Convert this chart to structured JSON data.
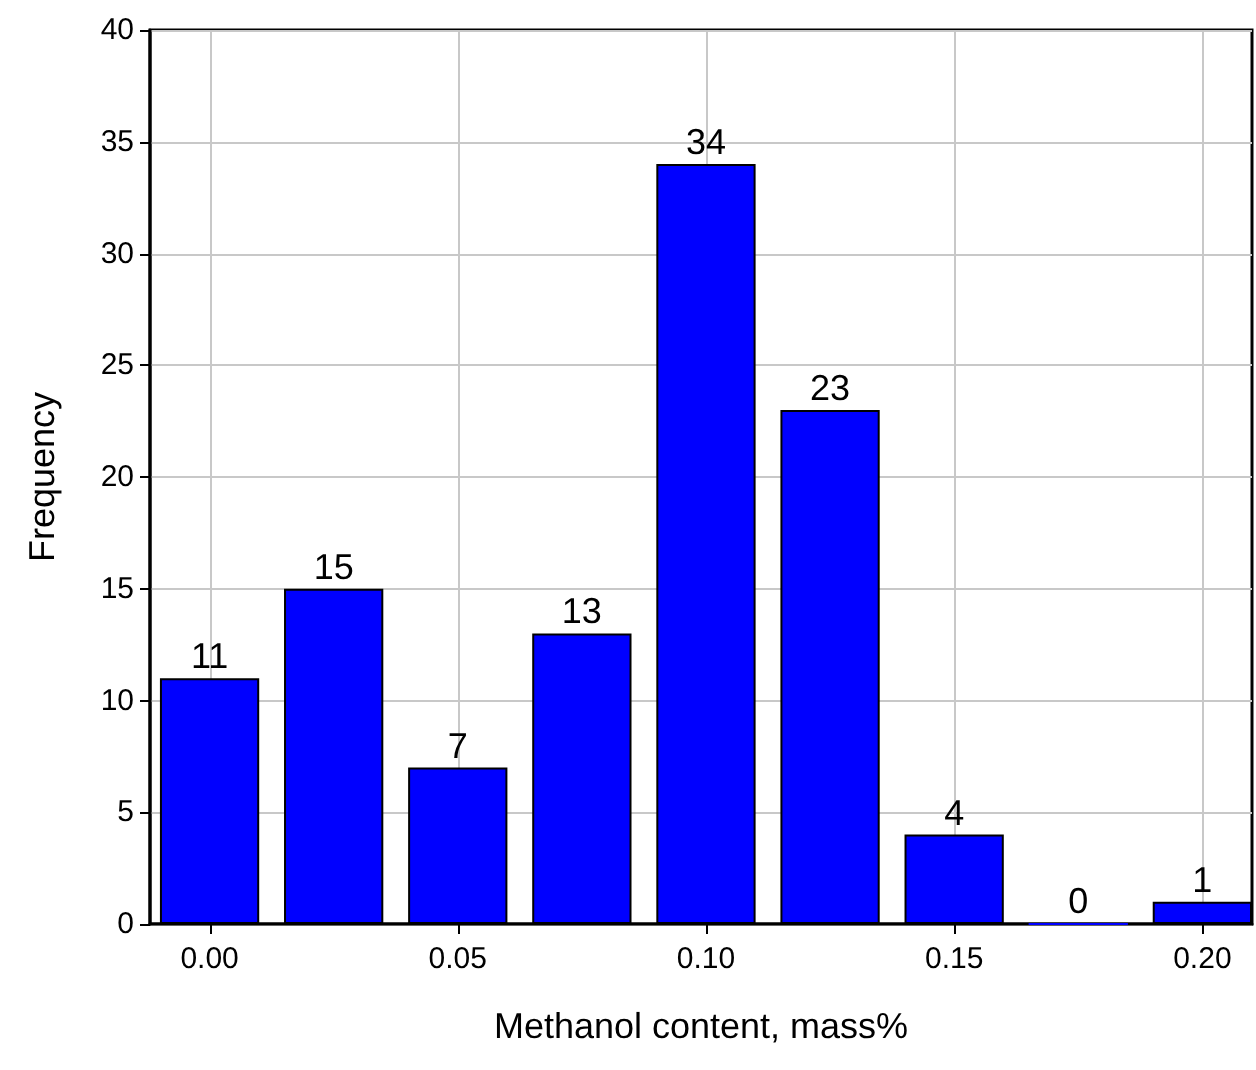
{
  "chart_data": {
    "type": "bar",
    "xlabel": "Methanol content, mass%",
    "ylabel": "Frequency",
    "x": [
      0,
      0.025,
      0.05,
      0.075,
      0.1,
      0.125,
      0.15,
      0.175,
      0.2
    ],
    "values": [
      11,
      15,
      7,
      13,
      34,
      23,
      4,
      0,
      1
    ],
    "color": "#0000ff",
    "data_labels": true,
    "grid": true,
    "xlim": [
      -0.012,
      0.21
    ],
    "xticks": [
      {
        "value": 0,
        "label": "0.00"
      },
      {
        "value": 0.05,
        "label": "0.05"
      },
      {
        "value": 0.1,
        "label": "0.10"
      },
      {
        "value": 0.15,
        "label": "0.15"
      },
      {
        "value": 0.2,
        "label": "0.20"
      }
    ],
    "ylim": [
      0,
      40
    ],
    "yticks": [
      0,
      5,
      10,
      15,
      20,
      25,
      30,
      35,
      40
    ]
  }
}
